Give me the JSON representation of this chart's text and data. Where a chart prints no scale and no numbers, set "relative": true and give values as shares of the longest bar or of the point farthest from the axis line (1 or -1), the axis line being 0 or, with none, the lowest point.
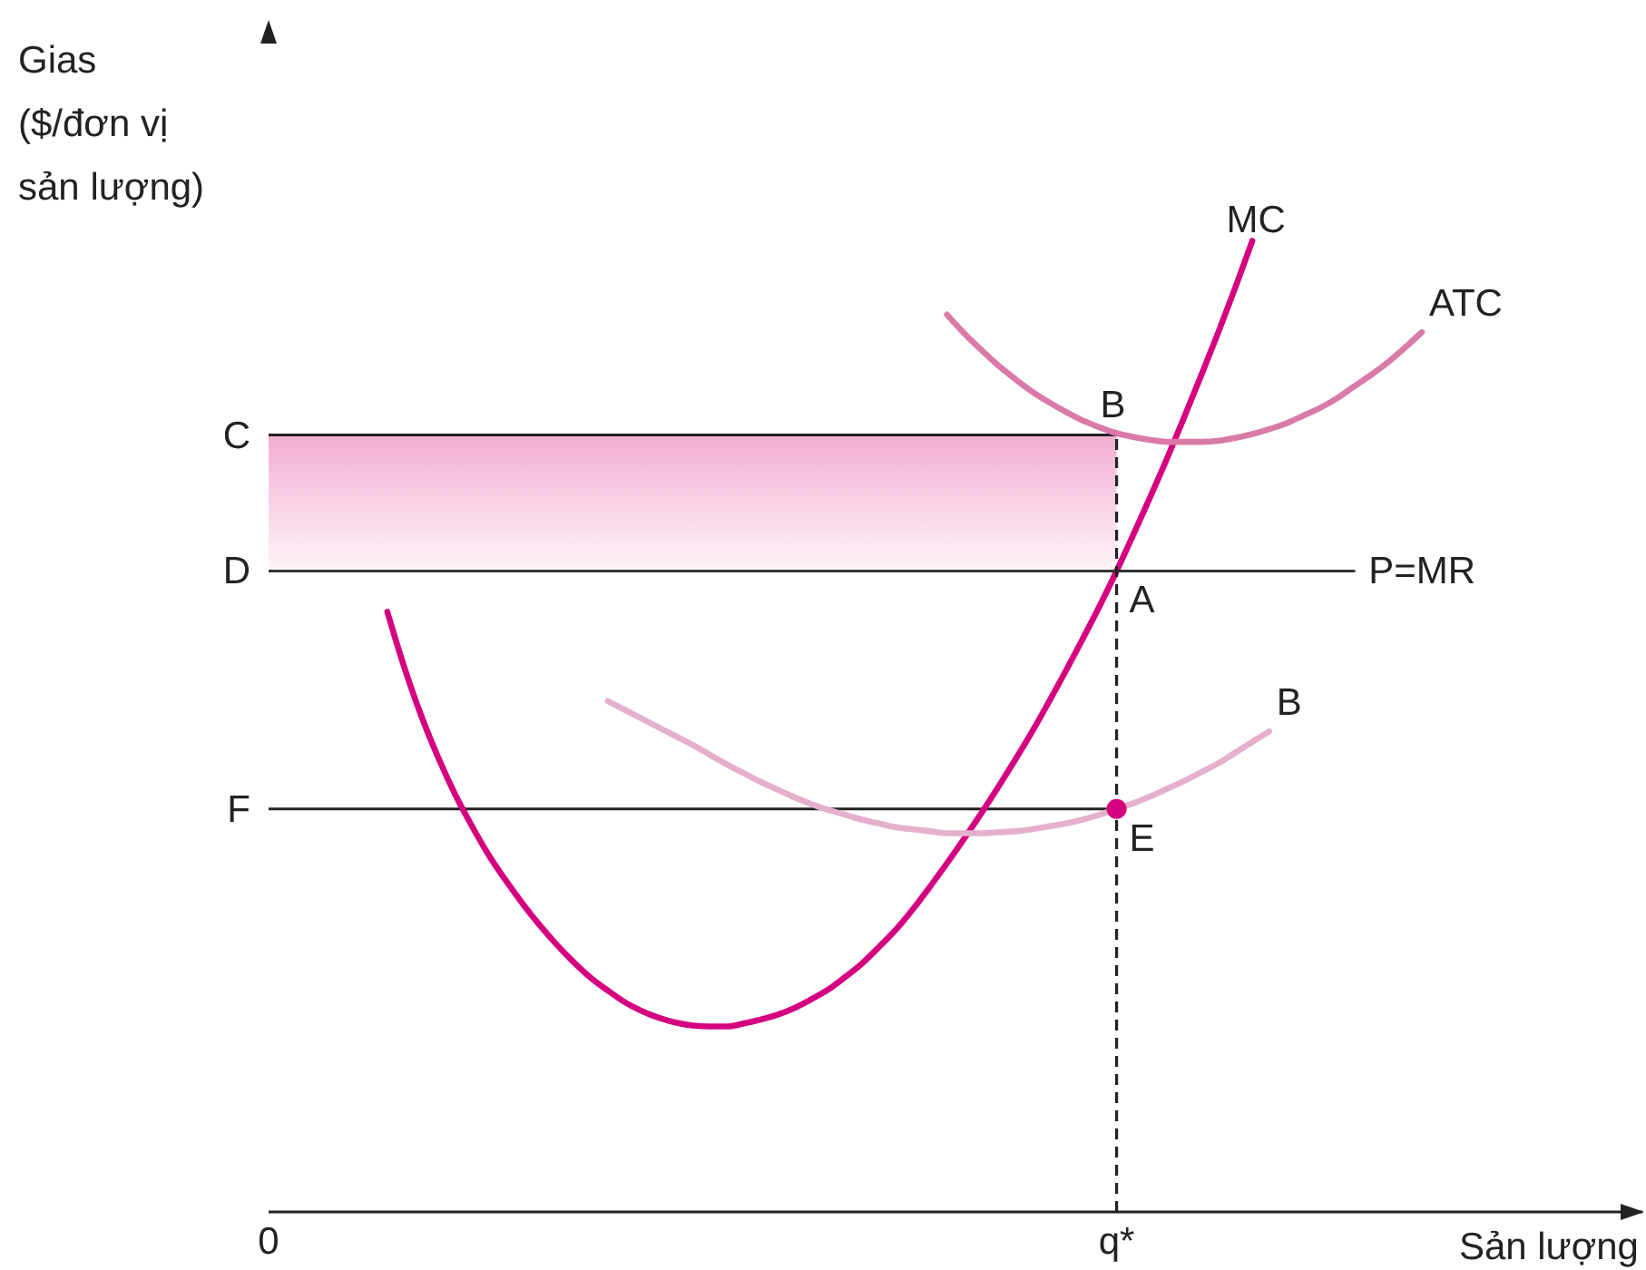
{
  "chart_data": {
    "type": "line",
    "relative": true,
    "marker": "none",
    "ylabel": "Gias ($/đơn vị sản lượng)",
    "xlabel": "Sản lượng",
    "categories": [
      "0",
      null,
      null,
      null,
      null,
      null,
      null,
      null,
      null,
      null,
      null,
      null,
      null,
      null,
      null,
      null,
      null,
      null,
      null,
      null,
      null,
      null,
      null,
      null,
      null,
      null,
      null,
      null,
      null,
      null,
      null,
      null,
      null,
      null,
      null,
      null,
      null,
      null,
      null,
      null,
      null,
      null,
      null,
      null,
      null,
      null,
      null,
      null,
      null,
      null,
      "q*",
      null,
      null,
      null,
      null,
      null,
      null,
      null,
      null,
      null,
      null,
      null,
      null,
      null,
      null,
      null,
      null,
      null,
      null,
      null,
      null,
      null,
      null,
      null,
      null,
      null,
      null,
      null,
      null,
      null,
      null,
      null
    ],
    "series": [
      {
        "name": "MC",
        "color": "#d5007f",
        "values": [
          null,
          null,
          null,
          null,
          null,
          null,
          null,
          0.618,
          0.561,
          0.511,
          0.468,
          0.43,
          0.397,
          0.367,
          0.341,
          0.317,
          0.295,
          0.275,
          0.257,
          0.241,
          0.228,
          0.216,
          0.207,
          0.2,
          0.195,
          0.192,
          0.191,
          0.191,
          0.194,
          0.198,
          0.203,
          0.21,
          0.219,
          0.229,
          0.242,
          0.256,
          0.273,
          0.291,
          0.312,
          0.335,
          0.359,
          0.384,
          0.41,
          0.437,
          0.465,
          0.494,
          0.525,
          0.557,
          0.59,
          0.624,
          0.66,
          0.698,
          0.737,
          0.777,
          0.819,
          0.862,
          0.906,
          0.952,
          1,
          null,
          null,
          null,
          null,
          null,
          null,
          null,
          null,
          null,
          null,
          null,
          null,
          null,
          null,
          null,
          null,
          null,
          null,
          null,
          null,
          null,
          null,
          null
        ]
      },
      {
        "name": "ATC",
        "color": "#d97aa8",
        "values": [
          null,
          null,
          null,
          null,
          null,
          null,
          null,
          null,
          null,
          null,
          null,
          null,
          null,
          null,
          null,
          null,
          null,
          null,
          null,
          null,
          null,
          null,
          null,
          null,
          null,
          null,
          null,
          null,
          null,
          null,
          null,
          null,
          null,
          null,
          null,
          null,
          null,
          null,
          null,
          null,
          0.924,
          0.905,
          0.888,
          0.872,
          0.858,
          0.845,
          0.834,
          0.824,
          0.815,
          0.808,
          0.802,
          0.798,
          0.795,
          0.793,
          0.793,
          0.793,
          0.794,
          0.797,
          0.801,
          0.806,
          0.812,
          0.82,
          0.828,
          0.838,
          0.85,
          0.862,
          0.875,
          0.89,
          0.906,
          null,
          null,
          null,
          null,
          null,
          null,
          null,
          null,
          null,
          null,
          null,
          null,
          null
        ]
      },
      {
        "name": "B",
        "color": "#e4b0cc",
        "values": [
          null,
          null,
          null,
          null,
          null,
          null,
          null,
          null,
          null,
          null,
          null,
          null,
          null,
          null,
          null,
          null,
          null,
          null,
          null,
          null,
          0.526,
          0.517,
          0.508,
          0.499,
          0.49,
          0.481,
          0.471,
          0.461,
          0.452,
          0.443,
          0.435,
          0.427,
          0.42,
          0.414,
          0.409,
          0.404,
          0.4,
          0.396,
          0.394,
          0.392,
          0.39,
          0.39,
          0.39,
          0.391,
          0.392,
          0.394,
          0.397,
          0.4,
          0.404,
          0.409,
          0.415,
          0.421,
          0.428,
          0.436,
          0.444,
          0.453,
          0.462,
          0.473,
          0.484,
          0.495,
          null,
          null,
          null,
          null,
          null,
          null,
          null,
          null,
          null,
          null,
          null,
          null,
          null,
          null,
          null,
          null,
          null,
          null,
          null,
          null,
          null,
          null
        ]
      },
      {
        "name": "P=MR",
        "color": "#333333",
        "values": [
          0.66,
          0.66,
          0.66,
          0.66,
          0.66,
          0.66,
          0.66,
          0.66,
          0.66,
          0.66,
          0.66,
          0.66,
          0.66,
          0.66,
          0.66,
          0.66,
          0.66,
          0.66,
          0.66,
          0.66,
          0.66,
          0.66,
          0.66,
          0.66,
          0.66,
          0.66,
          0.66,
          0.66,
          0.66,
          0.66,
          0.66,
          0.66,
          0.66,
          0.66,
          0.66,
          0.66,
          0.66,
          0.66,
          0.66,
          0.66,
          0.66,
          0.66,
          0.66,
          0.66,
          0.66,
          0.66,
          0.66,
          0.66,
          0.66,
          0.66,
          0.66,
          0.66,
          0.66,
          0.66,
          0.66,
          0.66,
          0.66,
          0.66,
          0.66,
          0.66,
          0.66,
          0.66,
          0.66,
          0.66,
          0.66,
          null,
          null,
          null,
          null,
          null,
          null,
          null,
          null,
          null,
          null,
          null,
          null,
          null,
          null,
          null,
          null,
          null
        ]
      },
      {
        "type": "line",
        "x": [
          "q*",
          "q*"
        ],
        "values": [
          0,
          0.8
        ],
        "color": "#222222",
        "line_style": "dashed"
      },
      {
        "type": "scatter",
        "x": [
          "q*"
        ],
        "values": [
          0.415
        ],
        "color": "#d5007f",
        "marker": "circle"
      }
    ],
    "ref_lines": [
      {
        "axis": "y",
        "value": 0.8,
        "label": "C",
        "color": "#222222"
      },
      {
        "axis": "y",
        "value": 0.415,
        "label": "F",
        "color": "#222222"
      }
    ],
    "bands": [
      {
        "axis": "y",
        "from": 0.66,
        "to": 0.8,
        "color": "#f2aed0"
      }
    ],
    "annotations": [
      {
        "text": "B",
        "x": "q*",
        "y": 0.8
      },
      {
        "text": "A",
        "x": "q*",
        "y": 0.66
      },
      {
        "text": "E",
        "x": "q*",
        "y": 0.415
      },
      {
        "text": "D",
        "x": "0",
        "y": 0.66
      }
    ]
  }
}
